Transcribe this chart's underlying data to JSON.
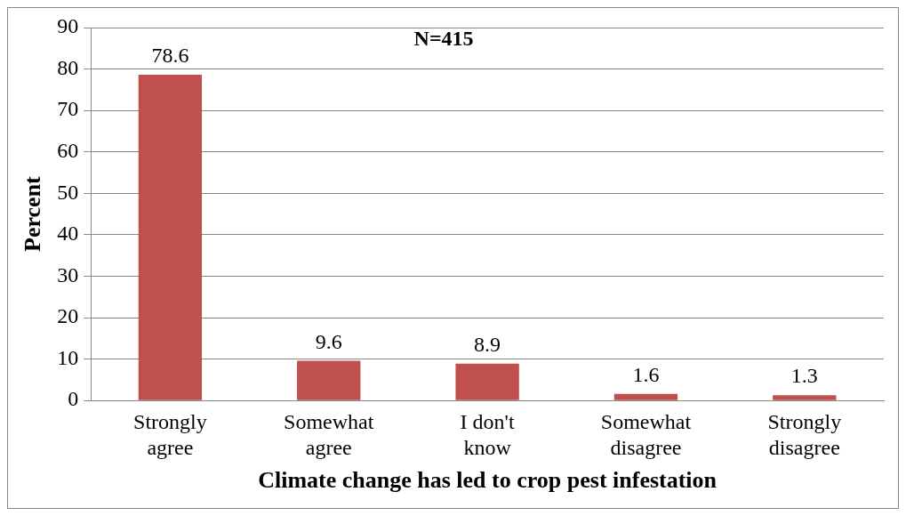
{
  "chart_data": {
    "type": "bar",
    "xlabel": "Climate change has led to crop pest infestation",
    "ylabel": "Percent",
    "annotations": [
      "N=415"
    ],
    "categories": [
      "Strongly agree",
      "Somewhat agree",
      "I don't know",
      "Somewhat disagree",
      "Strongly disagree"
    ],
    "values": [
      78.6,
      9.6,
      8.9,
      1.6,
      1.3
    ],
    "color": "#c0504d",
    "ylim": [
      0,
      90
    ],
    "yticks": [
      0,
      10,
      20,
      30,
      40,
      50,
      60,
      70,
      80,
      90
    ],
    "grid": "y",
    "legend": false,
    "data_labels": true
  }
}
